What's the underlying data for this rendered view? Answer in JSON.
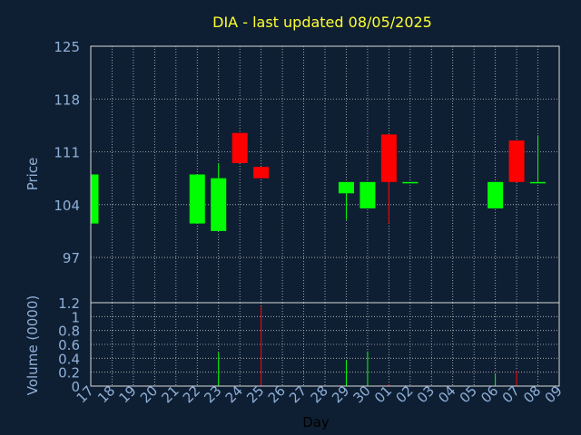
{
  "chart_data": {
    "type": "candlestick",
    "title": "DIA - last updated 08/05/2025",
    "xlabel": "Day",
    "price_panel": {
      "ylabel": "Price",
      "ylim": [
        91,
        125
      ],
      "yticks": [
        "125",
        "118",
        "111",
        "104",
        "97"
      ],
      "ytick_values": [
        125,
        118,
        111,
        104,
        97
      ],
      "grid": true
    },
    "volume_panel": {
      "ylabel": "Volume (0000)",
      "ylim": [
        0,
        1.2
      ],
      "yticks": [
        "1.2",
        "1",
        "0.8",
        "0.6",
        "0.4",
        "0.2",
        "0"
      ],
      "ytick_values": [
        1.2,
        1.0,
        0.8,
        0.6,
        0.4,
        0.2,
        0
      ],
      "grid": true
    },
    "x_tick_labels": [
      "17",
      "18",
      "19",
      "20",
      "21",
      "22",
      "23",
      "24",
      "25",
      "26",
      "27",
      "28",
      "29",
      "30",
      "01",
      "02",
      "03",
      "04",
      "05",
      "06",
      "07",
      "08",
      "09"
    ],
    "candles": [
      {
        "day": "17",
        "open": 101.5,
        "close": 108.0,
        "high": 108.0,
        "low": 101.5,
        "volume": 0.0
      },
      {
        "day": "22",
        "open": 101.5,
        "close": 108.0,
        "high": 108.0,
        "low": 101.5,
        "volume": 0.0
      },
      {
        "day": "23",
        "open": 100.5,
        "close": 107.5,
        "high": 109.5,
        "low": 100.5,
        "volume": 0.48
      },
      {
        "day": "24",
        "open": 113.5,
        "close": 109.5,
        "high": 113.5,
        "low": 109.5,
        "volume": 0.0
      },
      {
        "day": "25",
        "open": 109.0,
        "close": 107.5,
        "high": 109.0,
        "low": 107.5,
        "volume": 1.15
      },
      {
        "day": "29",
        "open": 105.5,
        "close": 107.0,
        "high": 107.0,
        "low": 102.0,
        "volume": 0.37
      },
      {
        "day": "30",
        "open": 103.5,
        "close": 107.0,
        "high": 107.0,
        "low": 103.5,
        "volume": 0.5
      },
      {
        "day": "01",
        "open": 113.3,
        "close": 107.0,
        "high": 113.3,
        "low": 101.5,
        "volume": 0.03
      },
      {
        "day": "02",
        "open": 107.0,
        "close": 107.0,
        "high": 107.0,
        "low": 107.0,
        "volume": 0.0
      },
      {
        "day": "06",
        "open": 103.5,
        "close": 107.0,
        "high": 107.0,
        "low": 103.5,
        "volume": 0.17
      },
      {
        "day": "07",
        "open": 112.5,
        "close": 107.0,
        "high": 112.5,
        "low": 107.0,
        "volume": 0.22
      },
      {
        "day": "08",
        "open": 107.0,
        "close": 107.0,
        "high": 113.2,
        "low": 107.0,
        "volume": 0.0
      }
    ],
    "colors": {
      "background": "#0f1f33",
      "title": "#ffff33",
      "axis_text": "#8fb0d8",
      "grid": "#c0c0c0",
      "up": "#00ff00",
      "down": "#ff0000"
    }
  }
}
